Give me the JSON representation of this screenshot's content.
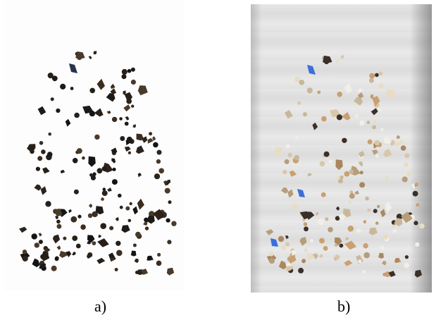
{
  "figure": {
    "panel_a": {
      "caption": "a)",
      "particle_color": "#1e1a17",
      "background": "#fdfdfd"
    },
    "panel_b": {
      "caption": "b)",
      "particle_color": "#c9b79a",
      "background": "#e3e3e3"
    }
  }
}
